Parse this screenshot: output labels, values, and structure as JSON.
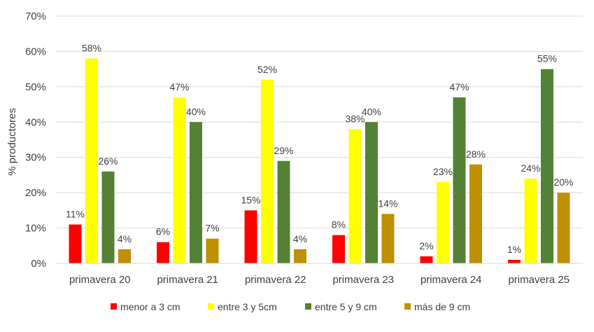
{
  "chart_data": {
    "type": "bar",
    "ylabel": "% productores",
    "ylim": [
      0,
      70
    ],
    "yticks": [
      "0%",
      "10%",
      "20%",
      "30%",
      "40%",
      "50%",
      "60%",
      "70%"
    ],
    "grid": true,
    "legend_position": "bottom",
    "categories": [
      "primavera 20",
      "primavera 21",
      "primavera 22",
      "primavera 23",
      "primavera 24",
      "primavera 25"
    ],
    "series": [
      {
        "name": "menor a 3 cm",
        "color": "#ff0000",
        "values": [
          11,
          6,
          15,
          8,
          2,
          1
        ],
        "labels": [
          "11%",
          "6%",
          "15%",
          "8%",
          "2%",
          "1%"
        ]
      },
      {
        "name": "entre 3 y 5cm",
        "color": "#ffff00",
        "values": [
          58,
          47,
          52,
          38,
          23,
          24
        ],
        "labels": [
          "58%",
          "47%",
          "52%",
          "38%",
          "23%",
          "24%"
        ]
      },
      {
        "name": "entre 5 y 9 cm",
        "color": "#548235",
        "values": [
          26,
          40,
          29,
          40,
          47,
          55
        ],
        "labels": [
          "26%",
          "40%",
          "29%",
          "40%",
          "47%",
          "55%"
        ]
      },
      {
        "name": "más de 9 cm",
        "color": "#bf9000",
        "values": [
          4,
          7,
          4,
          14,
          28,
          20
        ],
        "labels": [
          "4%",
          "7%",
          "4%",
          "14%",
          "28%",
          "20%"
        ]
      }
    ]
  }
}
